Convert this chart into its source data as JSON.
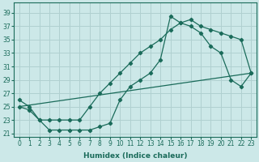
{
  "xlabel": "Humidex (Indice chaleur)",
  "ylabel": "",
  "bg_color": "#cce8e8",
  "grid_color": "#b0d0d0",
  "line_color": "#1a6b5a",
  "xlim": [
    -0.5,
    23.5
  ],
  "ylim": [
    20.5,
    40.5
  ],
  "xticks": [
    0,
    1,
    2,
    3,
    4,
    5,
    6,
    7,
    8,
    9,
    10,
    11,
    12,
    13,
    14,
    15,
    16,
    17,
    18,
    19,
    20,
    21,
    22,
    23
  ],
  "yticks": [
    21,
    23,
    25,
    27,
    29,
    31,
    33,
    35,
    37,
    39
  ],
  "curve_upper_x": [
    0,
    1,
    2,
    3,
    4,
    5,
    6,
    7,
    8,
    9,
    10,
    11,
    12,
    13,
    14,
    15,
    16,
    17,
    18,
    19,
    20,
    21,
    22,
    23
  ],
  "curve_upper_y": [
    26,
    25,
    23,
    23,
    23,
    23,
    23,
    25,
    27,
    28.5,
    30,
    31.5,
    33,
    34,
    35,
    36.5,
    37.5,
    38,
    37,
    36.5,
    36,
    35.5,
    35,
    30
  ],
  "curve_lower_x": [
    0,
    1,
    2,
    3,
    4,
    5,
    6,
    7,
    8,
    9,
    10,
    11,
    12,
    13,
    14,
    15,
    16,
    17,
    18,
    19,
    20,
    21,
    22,
    23
  ],
  "curve_lower_y": [
    25,
    24.5,
    23,
    21.5,
    21.5,
    21.5,
    21.5,
    21.5,
    22,
    22.5,
    26,
    28,
    29,
    30,
    32,
    38.5,
    37.5,
    37,
    36,
    34,
    33,
    29,
    28,
    30
  ],
  "line_x": [
    0,
    23
  ],
  "line_y": [
    25,
    30
  ]
}
